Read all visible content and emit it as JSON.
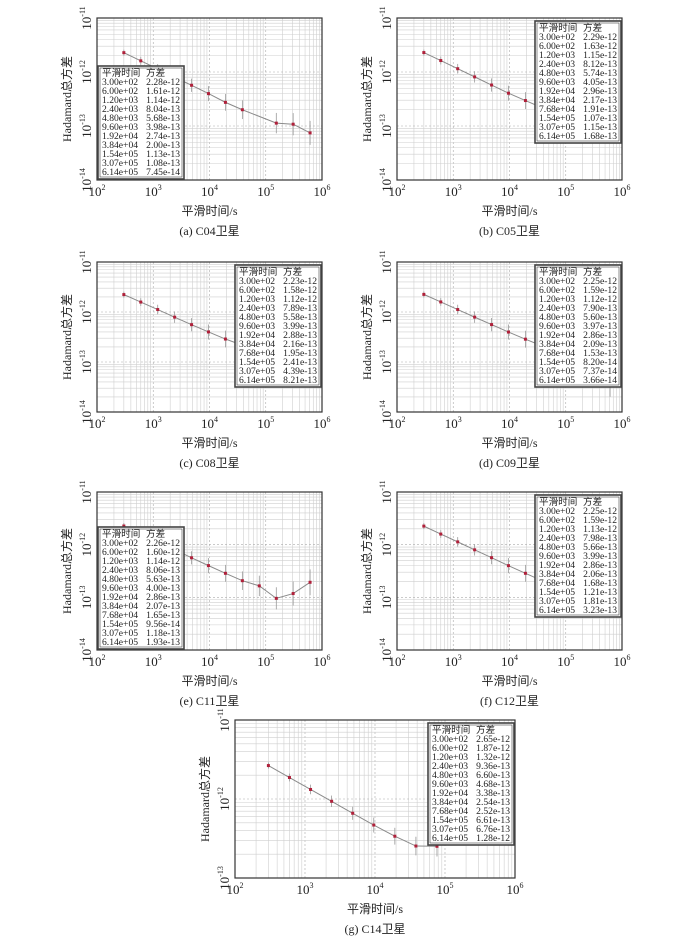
{
  "figure": {
    "panel_ylabel": "Hadamard总方差",
    "panel_xlabel": "平滑时间/s",
    "table_header": [
      "平滑时间",
      "方差"
    ],
    "colors": {
      "line": "#8a8a8a",
      "marker": "#b0203a",
      "grid": "#cfcfcf",
      "axis": "#333333"
    }
  },
  "chart_data": [
    {
      "type": "line",
      "caption": "(a) C04卫星",
      "xlabel": "平滑时间/s",
      "ylabel": "Hadamard总方差",
      "xscale": "log",
      "yscale": "log",
      "xlim": [
        100,
        1000000
      ],
      "ylim": [
        1e-14,
        1e-11
      ],
      "grid": true,
      "table_placement": "bottom-left",
      "xticks": [
        "10^2",
        "10^3",
        "10^4",
        "10^5",
        "10^6"
      ],
      "yticks": [
        "10^-11",
        "10^-12",
        "10^-13",
        "10^-14"
      ],
      "x": [
        300,
        600,
        1200,
        2400,
        4800,
        9600,
        19200,
        38400,
        154000,
        307000,
        614000
      ],
      "y": [
        2.28e-12,
        1.61e-12,
        1.14e-12,
        8.04e-13,
        5.68e-13,
        3.98e-13,
        2.74e-13,
        2e-13,
        1.13e-13,
        1.08e-13,
        7.45e-14
      ]
    },
    {
      "type": "line",
      "caption": "(b) C05卫星",
      "xlabel": "平滑时间/s",
      "ylabel": "Hadamard总方差",
      "xscale": "log",
      "yscale": "log",
      "xlim": [
        100,
        1000000
      ],
      "ylim": [
        1e-14,
        1e-11
      ],
      "grid": true,
      "table_placement": "top-right",
      "xticks": [
        "10^2",
        "10^3",
        "10^4",
        "10^5",
        "10^6"
      ],
      "yticks": [
        "10^-11",
        "10^-12",
        "10^-13",
        "10^-14"
      ],
      "x": [
        300,
        600,
        1200,
        2400,
        4800,
        9600,
        19200,
        38400,
        76800,
        154000,
        307000,
        614000
      ],
      "y": [
        2.29e-12,
        1.63e-12,
        1.15e-12,
        8.12e-13,
        5.74e-13,
        4.05e-13,
        2.96e-13,
        2.17e-13,
        1.91e-13,
        1.07e-13,
        1.15e-13,
        1.68e-13
      ]
    },
    {
      "type": "line",
      "caption": "(c) C08卫星",
      "xlabel": "平滑时间/s",
      "ylabel": "Hadamard总方差",
      "xscale": "log",
      "yscale": "log",
      "xlim": [
        100,
        1000000
      ],
      "ylim": [
        1e-14,
        1e-11
      ],
      "grid": true,
      "table_placement": "top-right",
      "xticks": [
        "10^2",
        "10^3",
        "10^4",
        "10^5",
        "10^6"
      ],
      "yticks": [
        "10^-11",
        "10^-12",
        "10^-13",
        "10^-14"
      ],
      "x": [
        300,
        600,
        1200,
        2400,
        4800,
        9600,
        19200,
        38400,
        76800,
        154000,
        307000,
        614000
      ],
      "y": [
        2.23e-12,
        1.58e-12,
        1.12e-12,
        7.89e-13,
        5.58e-13,
        3.99e-13,
        2.88e-13,
        2.16e-13,
        1.95e-13,
        2.41e-13,
        4.39e-13,
        8.21e-13
      ]
    },
    {
      "type": "line",
      "caption": "(d) C09卫星",
      "xlabel": "平滑时间/s",
      "ylabel": "Hadamard总方差",
      "xscale": "log",
      "yscale": "log",
      "xlim": [
        100,
        1000000
      ],
      "ylim": [
        1e-14,
        1e-11
      ],
      "grid": true,
      "table_placement": "top-right",
      "xticks": [
        "10^2",
        "10^3",
        "10^4",
        "10^5",
        "10^6"
      ],
      "yticks": [
        "10^-11",
        "10^-12",
        "10^-13",
        "10^-14"
      ],
      "x": [
        300,
        600,
        1200,
        2400,
        4800,
        9600,
        19200,
        38400,
        76800,
        154000,
        307000,
        614000
      ],
      "y": [
        2.25e-12,
        1.59e-12,
        1.12e-12,
        7.9e-13,
        5.6e-13,
        3.97e-13,
        2.86e-13,
        2.09e-13,
        1.53e-13,
        8.2e-14,
        7.37e-14,
        3.66e-14
      ]
    },
    {
      "type": "line",
      "caption": "(e) C11卫星",
      "xlabel": "平滑时间/s",
      "ylabel": "Hadamard总方差",
      "xscale": "log",
      "yscale": "log",
      "xlim": [
        100,
        1000000
      ],
      "ylim": [
        1e-14,
        1e-11
      ],
      "grid": true,
      "table_placement": "bottom-left",
      "xticks": [
        "10^2",
        "10^3",
        "10^4",
        "10^5",
        "10^6"
      ],
      "yticks": [
        "10^-11",
        "10^-12",
        "10^-13",
        "10^-14"
      ],
      "x": [
        300,
        600,
        1200,
        2400,
        4800,
        9600,
        19200,
        38400,
        76800,
        154000,
        307000,
        614000
      ],
      "y": [
        2.26e-12,
        1.6e-12,
        1.14e-12,
        8.06e-13,
        5.63e-13,
        4e-13,
        2.86e-13,
        2.07e-13,
        1.65e-13,
        9.56e-14,
        1.18e-13,
        1.93e-13
      ]
    },
    {
      "type": "line",
      "caption": "(f) C12卫星",
      "xlabel": "平滑时间/s",
      "ylabel": "Hadamard总方差",
      "xscale": "log",
      "yscale": "log",
      "xlim": [
        100,
        1000000
      ],
      "ylim": [
        1e-14,
        1e-11
      ],
      "grid": true,
      "table_placement": "top-right",
      "xticks": [
        "10^2",
        "10^3",
        "10^4",
        "10^5",
        "10^6"
      ],
      "yticks": [
        "10^-11",
        "10^-12",
        "10^-13",
        "10^-14"
      ],
      "x": [
        300,
        600,
        1200,
        2400,
        4800,
        9600,
        19200,
        38400,
        76800,
        154000,
        307000,
        614000
      ],
      "y": [
        2.25e-12,
        1.59e-12,
        1.13e-12,
        7.98e-13,
        5.66e-13,
        3.99e-13,
        2.86e-13,
        2.06e-13,
        1.68e-13,
        1.21e-13,
        1.81e-13,
        3.23e-13
      ]
    },
    {
      "type": "line",
      "caption": "(g) C14卫星",
      "xlabel": "平滑时间/s",
      "ylabel": "Hadamard总方差",
      "xscale": "log",
      "yscale": "log",
      "xlim": [
        100,
        1000000
      ],
      "ylim": [
        1e-13,
        1e-11
      ],
      "grid": true,
      "table_placement": "top-right",
      "xticks": [
        "10^2",
        "10^3",
        "10^4",
        "10^5",
        "10^6"
      ],
      "yticks": [
        "10^-11",
        "10^-12",
        "10^-13"
      ],
      "x": [
        300,
        600,
        1200,
        2400,
        4800,
        9600,
        19200,
        38400,
        76800,
        154000,
        307000,
        614000
      ],
      "y": [
        2.65e-12,
        1.87e-12,
        1.32e-12,
        9.36e-13,
        6.6e-13,
        4.68e-13,
        3.38e-13,
        2.54e-13,
        2.52e-13,
        6.61e-13,
        6.76e-13,
        1.28e-12
      ]
    }
  ]
}
